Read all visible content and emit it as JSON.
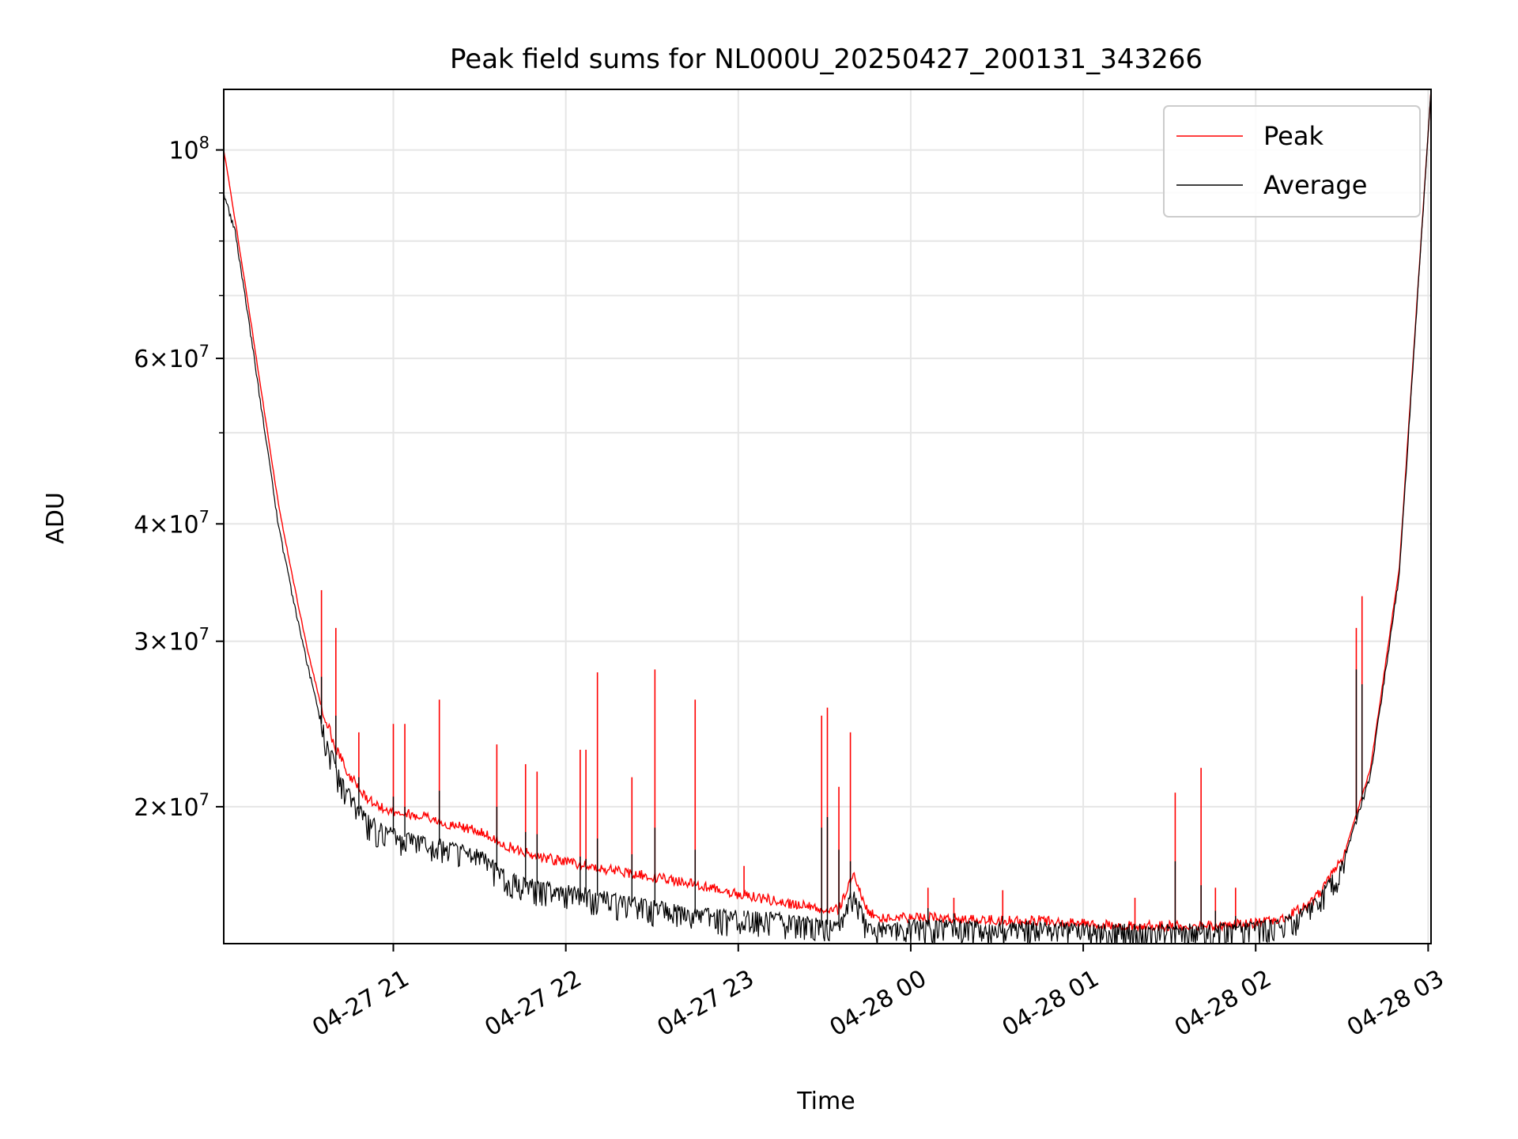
{
  "chart_data": {
    "type": "line",
    "title": "Peak field sums for NL000U_20250427_200131_343266",
    "xlabel": "Time",
    "ylabel": "ADU",
    "yscale": "log",
    "xlim": [
      "2025-04-27 20:01",
      "2025-04-28 03:01"
    ],
    "ylim": [
      14300000,
      116000000
    ],
    "grid": true,
    "legend_position": "top-right",
    "x_ticks": [
      {
        "value": "2025-04-27 21:00",
        "label": "04-27 21"
      },
      {
        "value": "2025-04-27 22:00",
        "label": "04-27 22"
      },
      {
        "value": "2025-04-27 23:00",
        "label": "04-27 23"
      },
      {
        "value": "2025-04-28 00:00",
        "label": "04-28 00"
      },
      {
        "value": "2025-04-28 01:00",
        "label": "04-28 01"
      },
      {
        "value": "2025-04-28 02:00",
        "label": "04-28 02"
      },
      {
        "value": "2025-04-28 03:00",
        "label": "04-28 03"
      }
    ],
    "y_ticks": [
      {
        "value": 20000000,
        "mant": "2",
        "exp": "7"
      },
      {
        "value": 30000000,
        "mant": "3",
        "exp": "7"
      },
      {
        "value": 40000000,
        "mant": "4",
        "exp": "7"
      },
      {
        "value": 60000000,
        "mant": "6",
        "exp": "7"
      },
      {
        "value": 100000000,
        "mant": "",
        "exp": "8"
      }
    ],
    "y_minor_ticks": [
      50000000,
      70000000,
      80000000,
      90000000
    ],
    "series": [
      {
        "name": "Peak",
        "color": "#ff0000",
        "x": [
          "2025-04-27 20:01",
          "2025-04-27 20:05",
          "2025-04-27 20:10",
          "2025-04-27 20:15",
          "2025-04-27 20:20",
          "2025-04-27 20:25",
          "2025-04-27 20:30",
          "2025-04-27 20:35",
          "2025-04-27 20:40",
          "2025-04-27 20:45",
          "2025-04-27 20:50",
          "2025-04-27 20:55",
          "2025-04-27 21:00",
          "2025-04-27 21:10",
          "2025-04-27 21:20",
          "2025-04-27 21:30",
          "2025-04-27 21:40",
          "2025-04-27 21:50",
          "2025-04-27 22:00",
          "2025-04-27 22:15",
          "2025-04-27 22:30",
          "2025-04-27 22:45",
          "2025-04-27 23:00",
          "2025-04-27 23:15",
          "2025-04-27 23:30",
          "2025-04-27 23:35",
          "2025-04-27 23:40",
          "2025-04-27 23:45",
          "2025-04-27 23:50",
          "2025-04-28 00:00",
          "2025-04-28 00:15",
          "2025-04-28 00:30",
          "2025-04-28 00:45",
          "2025-04-28 01:00",
          "2025-04-28 01:15",
          "2025-04-28 01:30",
          "2025-04-28 01:45",
          "2025-04-28 02:00",
          "2025-04-28 02:10",
          "2025-04-28 02:20",
          "2025-04-28 02:30",
          "2025-04-28 02:40",
          "2025-04-28 02:50",
          "2025-04-28 03:01"
        ],
        "values": [
          100000000,
          84000000,
          67000000,
          53000000,
          42000000,
          35000000,
          29500000,
          25500000,
          23000000,
          21500000,
          20500000,
          20000000,
          19700000,
          19500000,
          19100000,
          18800000,
          18100000,
          17700000,
          17400000,
          17100000,
          16800000,
          16500000,
          16100000,
          15800000,
          15500000,
          15500000,
          17000000,
          15400000,
          15200000,
          15200000,
          15200000,
          15100000,
          15100000,
          15000000,
          14900000,
          14900000,
          14900000,
          15000000,
          15200000,
          15800000,
          17500000,
          22000000,
          36000000,
          116000000
        ]
      },
      {
        "name": "Average",
        "color": "#000000",
        "x": [
          "2025-04-27 20:01",
          "2025-04-27 20:05",
          "2025-04-27 20:10",
          "2025-04-27 20:15",
          "2025-04-27 20:20",
          "2025-04-27 20:25",
          "2025-04-27 20:30",
          "2025-04-27 20:35",
          "2025-04-27 20:40",
          "2025-04-27 20:45",
          "2025-04-27 20:50",
          "2025-04-27 20:55",
          "2025-04-27 21:00",
          "2025-04-27 21:10",
          "2025-04-27 21:20",
          "2025-04-27 21:30",
          "2025-04-27 21:40",
          "2025-04-27 21:50",
          "2025-04-27 22:00",
          "2025-04-27 22:15",
          "2025-04-27 22:30",
          "2025-04-27 22:45",
          "2025-04-27 23:00",
          "2025-04-27 23:15",
          "2025-04-27 23:30",
          "2025-04-27 23:35",
          "2025-04-27 23:40",
          "2025-04-27 23:45",
          "2025-04-27 23:50",
          "2025-04-28 00:00",
          "2025-04-28 00:15",
          "2025-04-28 00:30",
          "2025-04-28 00:45",
          "2025-04-28 01:00",
          "2025-04-28 01:15",
          "2025-04-28 01:30",
          "2025-04-28 01:45",
          "2025-04-28 02:00",
          "2025-04-28 02:10",
          "2025-04-28 02:20",
          "2025-04-28 02:30",
          "2025-04-28 02:40",
          "2025-04-28 02:50",
          "2025-04-28 03:01"
        ],
        "values": [
          90000000,
          82000000,
          65000000,
          51000000,
          40000000,
          33500000,
          28500000,
          24500000,
          22000000,
          20500000,
          19500000,
          19000000,
          18700000,
          18400000,
          18100000,
          17800000,
          16800000,
          16500000,
          16300000,
          16000000,
          15700000,
          15400000,
          15300000,
          15200000,
          15000000,
          14900000,
          16300000,
          14800000,
          14900000,
          15000000,
          15000000,
          14900000,
          14900000,
          14800000,
          14800000,
          14800000,
          14800000,
          14900000,
          15100000,
          15700000,
          17300000,
          21700000,
          35500000,
          116000000
        ]
      }
    ],
    "spikes": [
      {
        "x": "2025-04-27 20:35",
        "peak": 34000000,
        "average": 27500000
      },
      {
        "x": "2025-04-27 20:40",
        "peak": 31000000,
        "average": 25000000
      },
      {
        "x": "2025-04-27 20:48",
        "peak": 24000000,
        "average": 21500000
      },
      {
        "x": "2025-04-27 21:00",
        "peak": 24500000,
        "average": 20500000
      },
      {
        "x": "2025-04-27 21:04",
        "peak": 24500000,
        "average": 20000000
      },
      {
        "x": "2025-04-27 21:16",
        "peak": 26000000,
        "average": 20800000
      },
      {
        "x": "2025-04-27 21:36",
        "peak": 23300000,
        "average": 20000000
      },
      {
        "x": "2025-04-27 21:46",
        "peak": 22200000,
        "average": 18800000
      },
      {
        "x": "2025-04-27 21:50",
        "peak": 21800000,
        "average": 18700000
      },
      {
        "x": "2025-04-27 22:05",
        "peak": 23000000,
        "average": 17700000
      },
      {
        "x": "2025-04-27 22:07",
        "peak": 23000000,
        "average": 17600000
      },
      {
        "x": "2025-04-27 22:11",
        "peak": 27800000,
        "average": 18500000
      },
      {
        "x": "2025-04-27 22:23",
        "peak": 21500000,
        "average": 17800000
      },
      {
        "x": "2025-04-27 22:31",
        "peak": 28000000,
        "average": 19000000
      },
      {
        "x": "2025-04-27 22:45",
        "peak": 26000000,
        "average": 18000000
      },
      {
        "x": "2025-04-27 23:02",
        "peak": 17300000,
        "average": 15500000
      },
      {
        "x": "2025-04-27 23:29",
        "peak": 25000000,
        "average": 19000000
      },
      {
        "x": "2025-04-27 23:31",
        "peak": 25500000,
        "average": 19500000
      },
      {
        "x": "2025-04-27 23:35",
        "peak": 21000000,
        "average": 18000000
      },
      {
        "x": "2025-04-27 23:39",
        "peak": 24000000,
        "average": 17500000
      },
      {
        "x": "2025-04-28 00:06",
        "peak": 16400000,
        "average": 15600000
      },
      {
        "x": "2025-04-28 00:15",
        "peak": 16000000,
        "average": 15400000
      },
      {
        "x": "2025-04-28 00:32",
        "peak": 16300000,
        "average": 15300000
      },
      {
        "x": "2025-04-28 01:18",
        "peak": 16000000,
        "average": 15000000
      },
      {
        "x": "2025-04-28 01:32",
        "peak": 20700000,
        "average": 17500000
      },
      {
        "x": "2025-04-28 01:41",
        "peak": 22000000,
        "average": 16500000
      },
      {
        "x": "2025-04-28 01:46",
        "peak": 16400000,
        "average": 15500000
      },
      {
        "x": "2025-04-28 01:53",
        "peak": 16400000,
        "average": 15300000
      },
      {
        "x": "2025-04-28 02:35",
        "peak": 31000000,
        "average": 28000000
      },
      {
        "x": "2025-04-28 02:37",
        "peak": 33500000,
        "average": 27000000
      }
    ]
  }
}
